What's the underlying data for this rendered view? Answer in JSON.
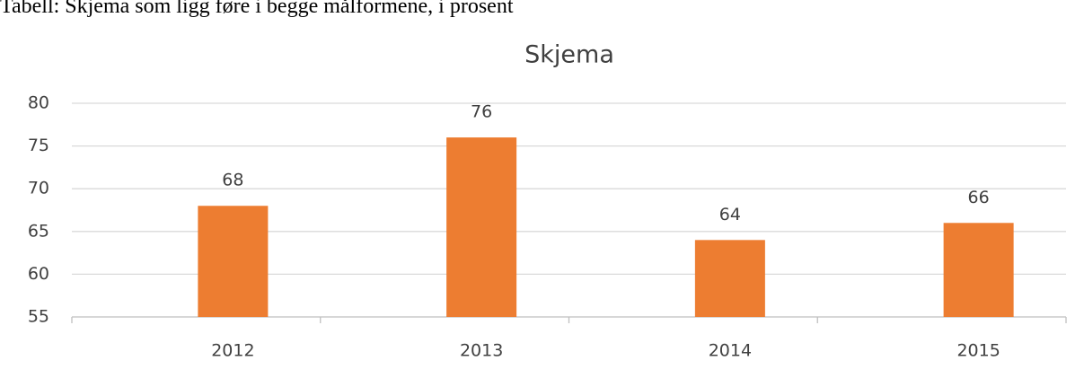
{
  "caption": "Tabell: Skjema som ligg føre i begge målformene, i prosent",
  "chart_data": {
    "type": "bar",
    "title": "Skjema",
    "categories": [
      "2012",
      "2013",
      "2014",
      "2015"
    ],
    "values": [
      68,
      76,
      64,
      66
    ],
    "color": "#ed7d31",
    "ylim": [
      55,
      80
    ],
    "yticks": [
      55,
      60,
      65,
      70,
      75,
      80
    ],
    "grid": true
  }
}
